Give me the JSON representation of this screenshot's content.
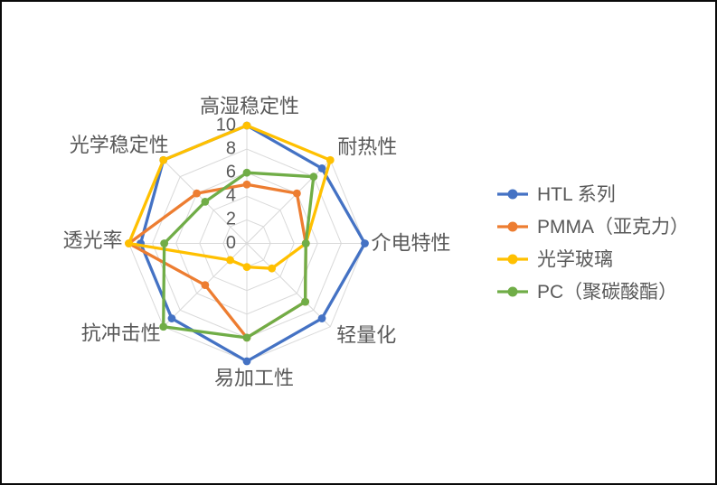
{
  "chart_data": {
    "type": "radar",
    "categories": [
      "高湿稳定性",
      "耐热性",
      "介电特性",
      "轻量化",
      "易加工性",
      "抗冲击性",
      "透光率",
      "光学稳定性"
    ],
    "series": [
      {
        "name": "HTL 系列",
        "color": "#4472C4",
        "values": [
          10,
          9,
          10,
          9,
          10,
          9,
          9,
          10
        ]
      },
      {
        "name": "PMMA（亚克力）",
        "color": "#ED7D31",
        "values": [
          5,
          6,
          5,
          7,
          8,
          5,
          10,
          6
        ]
      },
      {
        "name": "光学玻璃",
        "color": "#FFC000",
        "values": [
          10,
          10,
          5,
          3,
          2,
          2,
          10,
          10
        ]
      },
      {
        "name": "PC（聚碳酸酯）",
        "color": "#70AD47",
        "values": [
          6,
          8,
          5,
          7,
          8,
          10,
          7,
          5
        ]
      }
    ],
    "radial_axis": {
      "min": 0,
      "max": 10,
      "tick_step": 2,
      "ticks": [
        0,
        2,
        4,
        6,
        8,
        10
      ]
    },
    "legend_position": "right",
    "grid": true,
    "gridline_color": "#D9D9D9",
    "text_color": "#595959",
    "background_color": "#FFFFFF",
    "marker_shape": "circle"
  }
}
